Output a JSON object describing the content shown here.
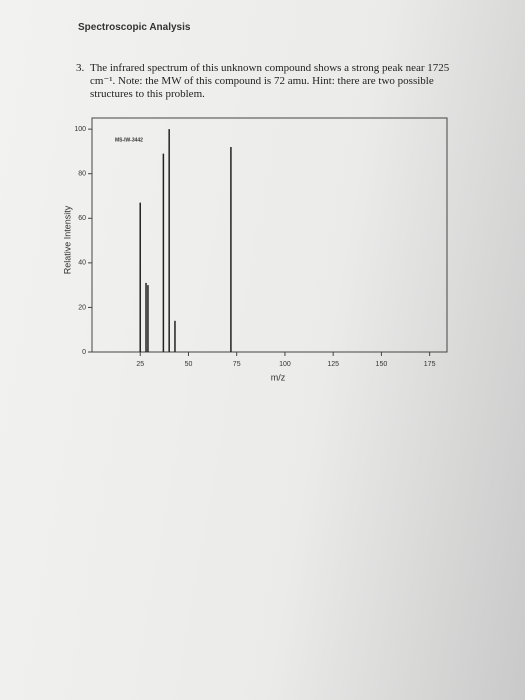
{
  "header": {
    "title": "Spectroscopic Analysis"
  },
  "question": {
    "number": "3.",
    "text": "The infrared spectrum of this unknown compound shows a strong peak near 1725 cm⁻¹. Note: the MW of this compound is 72 amu. Hint: there are two possible structures to this problem."
  },
  "chart_data": {
    "type": "stem",
    "annotation": "MS-IW-3442",
    "xlabel": "m/z",
    "ylabel": "Relative Intensity",
    "x": [
      25,
      28,
      29,
      37,
      40,
      43,
      72
    ],
    "values": [
      67,
      31,
      30,
      89,
      100,
      14,
      92
    ],
    "color": "#222222",
    "xlim": [
      0,
      184
    ],
    "ylim": [
      0,
      105
    ],
    "xticks": [
      25,
      50,
      75,
      100,
      125,
      150,
      175
    ],
    "yticks": [
      0,
      20,
      40,
      60,
      80,
      100
    ]
  }
}
